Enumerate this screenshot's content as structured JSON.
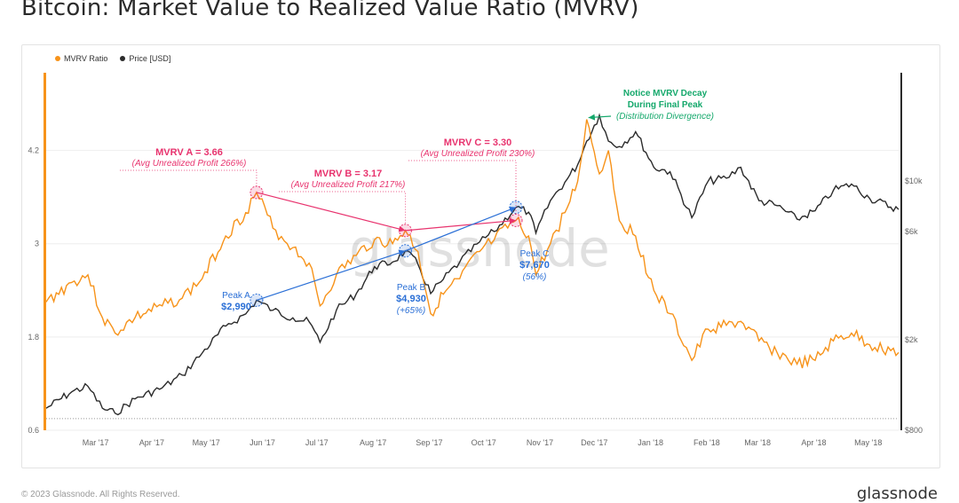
{
  "title": "Bitcoin: Market Value to Realized Value Ratio (MVRV)",
  "footer": "© 2023 Glassnode. All Rights Reserved.",
  "brand": "glassnode",
  "watermark": "glassnode",
  "colors": {
    "mvrv": "#f7931a",
    "price": "#2b2b2b",
    "pink": "#e8336e",
    "blue": "#2a6fd6",
    "green": "#14a86b",
    "grid": "#eeeeee"
  },
  "chart_data": {
    "type": "line",
    "x_range": [
      "2017-02-15",
      "2018-05-31"
    ],
    "x_ticks": [
      {
        "label": "Mar '17",
        "date": "2017-03-01"
      },
      {
        "label": "Apr '17",
        "date": "2017-04-01"
      },
      {
        "label": "May '17",
        "date": "2017-05-01"
      },
      {
        "label": "Jun '17",
        "date": "2017-06-01"
      },
      {
        "label": "Jul '17",
        "date": "2017-07-01"
      },
      {
        "label": "Aug '17",
        "date": "2017-08-01"
      },
      {
        "label": "Sep '17",
        "date": "2017-09-01"
      },
      {
        "label": "Oct '17",
        "date": "2017-10-01"
      },
      {
        "label": "Nov '17",
        "date": "2017-11-01"
      },
      {
        "label": "Dec '17",
        "date": "2017-12-01"
      },
      {
        "label": "Jan '18",
        "date": "2018-01-01"
      },
      {
        "label": "Feb '18",
        "date": "2018-02-01"
      },
      {
        "label": "Mar '18",
        "date": "2018-03-01"
      },
      {
        "label": "Apr '18",
        "date": "2018-04-01"
      },
      {
        "label": "May '18",
        "date": "2018-05-01"
      }
    ],
    "left_axis": {
      "ylim": [
        0.6,
        5.2
      ],
      "ticks": [
        0.6,
        1.8,
        3,
        4.2
      ],
      "tick_labels": [
        "0.6",
        "1.8",
        "3",
        "4.2"
      ]
    },
    "right_axis": {
      "scale": "log",
      "ylim": [
        800,
        30000
      ],
      "ticks": [
        800,
        2000,
        6000,
        10000
      ],
      "tick_labels": [
        "$800",
        "$2k",
        "$6k",
        "$10k"
      ]
    },
    "legend": {
      "placement": "top-left",
      "entries": [
        "MVRV Ratio",
        "Price [USD]"
      ]
    },
    "series": [
      {
        "name": "MVRV Ratio",
        "axis": "left",
        "points": [
          [
            "2017-02-15",
            2.25
          ],
          [
            "2017-03-01",
            2.5
          ],
          [
            "2017-03-10",
            2.6
          ],
          [
            "2017-03-18",
            2.05
          ],
          [
            "2017-03-25",
            1.85
          ],
          [
            "2017-04-05",
            2.05
          ],
          [
            "2017-04-20",
            2.2
          ],
          [
            "2017-05-01",
            2.3
          ],
          [
            "2017-05-12",
            2.55
          ],
          [
            "2017-05-25",
            3.1
          ],
          [
            "2017-06-05",
            3.4
          ],
          [
            "2017-06-11",
            3.66
          ],
          [
            "2017-06-20",
            3.2
          ],
          [
            "2017-07-01",
            2.95
          ],
          [
            "2017-07-10",
            2.75
          ],
          [
            "2017-07-16",
            2.2
          ],
          [
            "2017-07-25",
            2.6
          ],
          [
            "2017-08-05",
            2.85
          ],
          [
            "2017-08-15",
            3.05
          ],
          [
            "2017-08-25",
            3.0
          ],
          [
            "2017-09-01",
            3.17
          ],
          [
            "2017-09-08",
            2.9
          ],
          [
            "2017-09-15",
            2.1
          ],
          [
            "2017-09-22",
            2.35
          ],
          [
            "2017-10-01",
            2.55
          ],
          [
            "2017-10-12",
            2.9
          ],
          [
            "2017-10-20",
            3.05
          ],
          [
            "2017-11-01",
            3.3
          ],
          [
            "2017-11-08",
            3.1
          ],
          [
            "2017-11-12",
            2.6
          ],
          [
            "2017-11-20",
            3.0
          ],
          [
            "2017-11-28",
            3.4
          ],
          [
            "2017-12-05",
            3.8
          ],
          [
            "2017-12-10",
            4.6
          ],
          [
            "2017-12-17",
            3.9
          ],
          [
            "2017-12-22",
            4.2
          ],
          [
            "2017-12-28",
            3.3
          ],
          [
            "2018-01-06",
            3.1
          ],
          [
            "2018-01-16",
            2.4
          ],
          [
            "2018-01-25",
            2.1
          ],
          [
            "2018-02-06",
            1.5
          ],
          [
            "2018-02-15",
            1.9
          ],
          [
            "2018-02-25",
            1.95
          ],
          [
            "2018-03-05",
            2.0
          ],
          [
            "2018-03-15",
            1.75
          ],
          [
            "2018-03-25",
            1.6
          ],
          [
            "2018-04-05",
            1.45
          ],
          [
            "2018-04-15",
            1.5
          ],
          [
            "2018-04-25",
            1.75
          ],
          [
            "2018-05-05",
            1.85
          ],
          [
            "2018-05-15",
            1.7
          ],
          [
            "2018-05-31",
            1.6
          ]
        ]
      },
      {
        "name": "Price [USD]",
        "axis": "right",
        "points": [
          [
            "2017-02-15",
            1000
          ],
          [
            "2017-03-01",
            1180
          ],
          [
            "2017-03-10",
            1250
          ],
          [
            "2017-03-18",
            1000
          ],
          [
            "2017-03-25",
            950
          ],
          [
            "2017-04-05",
            1100
          ],
          [
            "2017-04-20",
            1230
          ],
          [
            "2017-05-01",
            1400
          ],
          [
            "2017-05-12",
            1750
          ],
          [
            "2017-05-25",
            2300
          ],
          [
            "2017-06-05",
            2600
          ],
          [
            "2017-06-11",
            2990
          ],
          [
            "2017-06-20",
            2700
          ],
          [
            "2017-07-01",
            2500
          ],
          [
            "2017-07-10",
            2400
          ],
          [
            "2017-07-16",
            1950
          ],
          [
            "2017-07-25",
            2700
          ],
          [
            "2017-08-05",
            3200
          ],
          [
            "2017-08-15",
            4200
          ],
          [
            "2017-08-25",
            4400
          ],
          [
            "2017-09-01",
            4930
          ],
          [
            "2017-09-08",
            4300
          ],
          [
            "2017-09-15",
            3200
          ],
          [
            "2017-09-22",
            3700
          ],
          [
            "2017-10-01",
            4400
          ],
          [
            "2017-10-12",
            5400
          ],
          [
            "2017-10-20",
            6000
          ],
          [
            "2017-11-01",
            7670
          ],
          [
            "2017-11-08",
            7300
          ],
          [
            "2017-11-12",
            5900
          ],
          [
            "2017-11-20",
            8200
          ],
          [
            "2017-11-28",
            9900
          ],
          [
            "2017-12-05",
            11800
          ],
          [
            "2017-12-10",
            15000
          ],
          [
            "2017-12-17",
            19500
          ],
          [
            "2017-12-22",
            15000
          ],
          [
            "2017-12-28",
            14200
          ],
          [
            "2018-01-06",
            16500
          ],
          [
            "2018-01-16",
            11500
          ],
          [
            "2018-01-25",
            11000
          ],
          [
            "2018-02-06",
            6900
          ],
          [
            "2018-02-15",
            10000
          ],
          [
            "2018-02-25",
            10300
          ],
          [
            "2018-03-05",
            11500
          ],
          [
            "2018-03-15",
            8200
          ],
          [
            "2018-03-25",
            7800
          ],
          [
            "2018-04-05",
            6800
          ],
          [
            "2018-04-15",
            7400
          ],
          [
            "2018-04-25",
            9100
          ],
          [
            "2018-05-05",
            9700
          ],
          [
            "2018-05-15",
            8400
          ],
          [
            "2018-05-31",
            7500
          ]
        ]
      }
    ],
    "annotations": [
      {
        "id": "A",
        "title": "MVRV A = 3.66",
        "subtitle": "(Avg Unrealized Profit 266%)",
        "date": "2017-06-11",
        "mvrv": 3.66
      },
      {
        "id": "B",
        "title": "MVRV B = 3.17",
        "subtitle": "(Avg Unrealized Profit 217%)",
        "date": "2017-09-01",
        "mvrv": 3.17
      },
      {
        "id": "C",
        "title": "MVRV C = 3.30",
        "subtitle": "(Avg Unrealized Profit 230%)",
        "date": "2017-11-01",
        "mvrv": 3.3
      },
      {
        "id": "peakA",
        "title": "Peak A",
        "value": "$2,990",
        "date": "2017-06-11",
        "price": 2990
      },
      {
        "id": "peakB",
        "title": "Peak B",
        "value": "$4,930",
        "change": "(+65%)",
        "date": "2017-09-01",
        "price": 4930
      },
      {
        "id": "peakC",
        "title": "Peak C",
        "value": "$7,670",
        "change": "(56%)",
        "date": "2017-11-01",
        "price": 7670
      },
      {
        "id": "decay",
        "lines": [
          "Notice MVRV Decay",
          "During Final Peak"
        ],
        "subtitle": "(Distribution Divergence)",
        "date": "2017-12-10",
        "mvrv": 4.6
      }
    ]
  }
}
